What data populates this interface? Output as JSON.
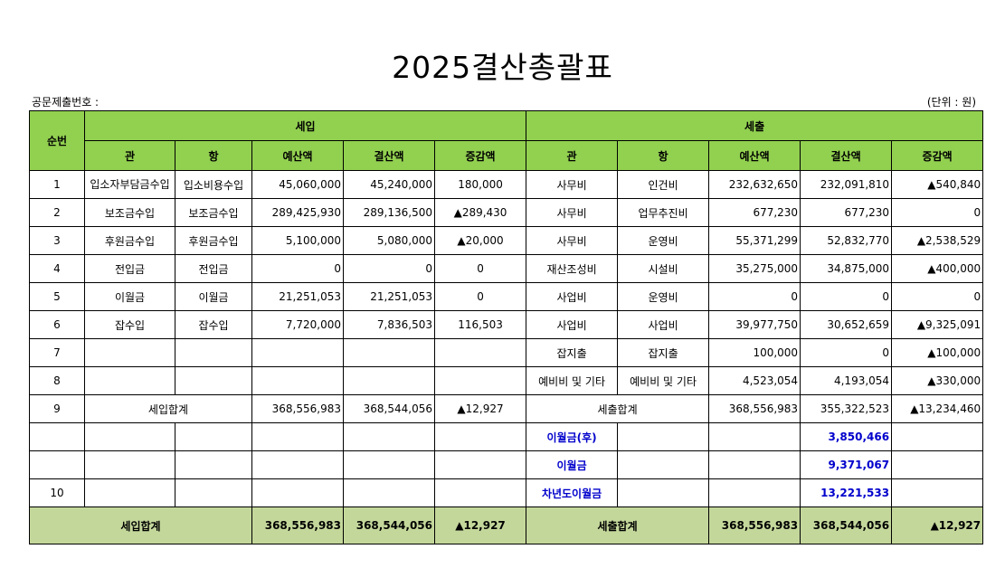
{
  "title": "2025결산총괄표",
  "doc_number_label": "공문제출번호 :",
  "unit_label": "(단위 : 원)",
  "colors": {
    "header_bg": "#92d050",
    "total_bg": "#c4d79b",
    "highlight_text": "#0000cc"
  },
  "header": {
    "no": "순번",
    "income": "세입",
    "expense": "세출",
    "cols": [
      "관",
      "항",
      "예산액",
      "결산액",
      "증감액"
    ]
  },
  "rows": [
    {
      "no": "1",
      "income": [
        "입소자부담금수입",
        "입소비용수입",
        "45,060,000",
        "45,240,000",
        "180,000"
      ],
      "expense": [
        "사무비",
        "인건비",
        "232,632,650",
        "232,091,810",
        "▲540,840"
      ]
    },
    {
      "no": "2",
      "income": [
        "보조금수입",
        "보조금수입",
        "289,425,930",
        "289,136,500",
        "▲289,430"
      ],
      "expense": [
        "사무비",
        "업무추진비",
        "677,230",
        "677,230",
        "0"
      ]
    },
    {
      "no": "3",
      "income": [
        "후원금수입",
        "후원금수입",
        "5,100,000",
        "5,080,000",
        "▲20,000"
      ],
      "expense": [
        "사무비",
        "운영비",
        "55,371,299",
        "52,832,770",
        "▲2,538,529"
      ]
    },
    {
      "no": "4",
      "income": [
        "전입금",
        "전입금",
        "0",
        "0",
        "0"
      ],
      "expense": [
        "재산조성비",
        "시설비",
        "35,275,000",
        "34,875,000",
        "▲400,000"
      ]
    },
    {
      "no": "5",
      "income": [
        "이월금",
        "이월금",
        "21,251,053",
        "21,251,053",
        "0"
      ],
      "expense": [
        "사업비",
        "운영비",
        "0",
        "0",
        "0"
      ]
    },
    {
      "no": "6",
      "income": [
        "잡수입",
        "잡수입",
        "7,720,000",
        "7,836,503",
        "116,503"
      ],
      "expense": [
        "사업비",
        "사업비",
        "39,977,750",
        "30,652,659",
        "▲9,325,091"
      ]
    },
    {
      "no": "7",
      "income": [
        "",
        "",
        "",
        "",
        ""
      ],
      "expense": [
        "잡지출",
        "잡지출",
        "100,000",
        "0",
        "▲100,000"
      ]
    },
    {
      "no": "8",
      "income": [
        "",
        "",
        "",
        "",
        ""
      ],
      "expense": [
        "예비비 및 기타",
        "예비비 및 기타",
        "4,523,054",
        "4,193,054",
        "▲330,000"
      ]
    },
    {
      "no": "9",
      "merged": true,
      "income": [
        "세입합계",
        "",
        "368,556,983",
        "368,544,056",
        "▲12,927"
      ],
      "expense": [
        "세출합계",
        "",
        "368,556,983",
        "355,322,523",
        "▲13,234,460"
      ]
    },
    {
      "no": "",
      "blue": true,
      "income": [
        "",
        "",
        "",
        "",
        ""
      ],
      "expense": [
        "이월금(후)",
        "",
        "",
        "3,850,466",
        ""
      ]
    },
    {
      "no": "",
      "blue": true,
      "income": [
        "",
        "",
        "",
        "",
        ""
      ],
      "expense": [
        "이월금",
        "",
        "",
        "9,371,067",
        ""
      ]
    },
    {
      "no": "10",
      "blue": true,
      "income": [
        "",
        "",
        "",
        "",
        ""
      ],
      "expense": [
        "차년도이월금",
        "",
        "",
        "13,221,533",
        ""
      ]
    }
  ],
  "total": {
    "income": [
      "세입합계",
      "368,556,983",
      "368,544,056",
      "▲12,927"
    ],
    "expense": [
      "세출합계",
      "368,556,983",
      "368,544,056",
      "▲12,927"
    ]
  }
}
